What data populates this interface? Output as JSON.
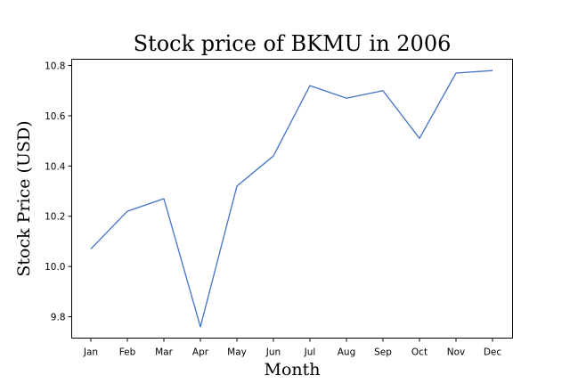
{
  "chart_data": {
    "type": "line",
    "title": "Stock price of BKMU in 2006",
    "xlabel": "Month",
    "ylabel": "Stock Price (USD)",
    "categories": [
      "Jan",
      "Feb",
      "Mar",
      "Apr",
      "May",
      "Jun",
      "Jul",
      "Aug",
      "Sep",
      "Oct",
      "Nov",
      "Dec"
    ],
    "series": [
      {
        "values": [
          10.07,
          10.22,
          10.27,
          9.76,
          10.32,
          10.44,
          10.72,
          10.67,
          10.7,
          10.51,
          10.77,
          10.78
        ]
      }
    ],
    "yticks": [
      "9.8",
      "10.0",
      "10.2",
      "10.4",
      "10.6",
      "10.8"
    ],
    "ylim": [
      9.715,
      10.825
    ],
    "grid": false,
    "line_color": "#4472c4"
  }
}
